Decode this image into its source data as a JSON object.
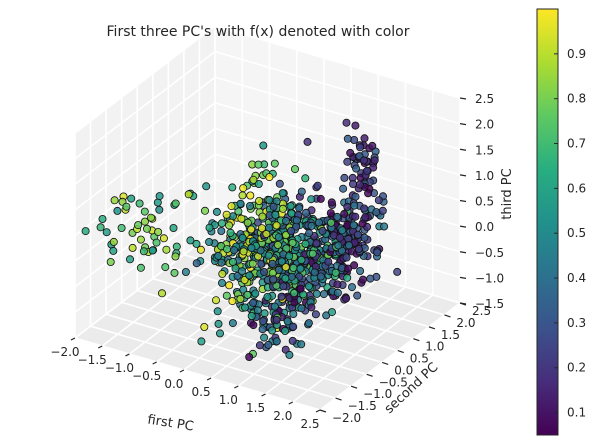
{
  "chart_data": {
    "type": "scatter",
    "projection": "3d",
    "title": "First three PC's with f(x) denoted with color",
    "xlabel": "first PC",
    "ylabel": "second PC",
    "zlabel": "third PC",
    "xlim": [
      -2.0,
      2.5
    ],
    "ylim": [
      -2.0,
      2.5
    ],
    "zlim": [
      -1.5,
      2.5
    ],
    "x_ticks": [
      "−2.0",
      "−1.5",
      "−1.0",
      "−0.5",
      "0.0",
      "0.5",
      "1.0",
      "1.5",
      "2.0",
      "2.5"
    ],
    "y_ticks": [
      "−2.0",
      "−1.5",
      "−1.0",
      "−0.5",
      "0.0",
      "0.5",
      "1.0",
      "1.5",
      "2.0",
      "2.5"
    ],
    "z_ticks": [
      "−1.5",
      "−1.0",
      "−0.5",
      "0.0",
      "0.5",
      "1.0",
      "1.5",
      "2.0",
      "2.5"
    ],
    "grid": true,
    "colorbar": {
      "colormap": "viridis",
      "range": [
        0.05,
        1.0
      ],
      "ticks": [
        "0.1",
        "0.2",
        "0.3",
        "0.4",
        "0.5",
        "0.6",
        "0.7",
        "0.8",
        "0.9"
      ]
    },
    "clusters": [
      {
        "x": -1.55,
        "y": -1.2,
        "z": 0.3,
        "spread": [
          0.25,
          0.25,
          0.4
        ],
        "n": 25,
        "color_range": [
          0.5,
          0.95
        ]
      },
      {
        "x": -1.0,
        "y": -0.9,
        "z": 0.5,
        "spread": [
          0.25,
          0.3,
          0.5
        ],
        "n": 30,
        "color_range": [
          0.5,
          0.95
        ]
      },
      {
        "x": 0.3,
        "y": -0.2,
        "z": 0.2,
        "spread": [
          0.35,
          0.5,
          0.55
        ],
        "n": 330,
        "color_range": [
          0.35,
          1.0
        ]
      },
      {
        "x": 0.9,
        "y": 0.2,
        "z": 0.0,
        "spread": [
          0.3,
          0.5,
          0.5
        ],
        "n": 330,
        "color_range": [
          0.15,
          0.8
        ]
      },
      {
        "x": 1.0,
        "y": -0.6,
        "z": -0.8,
        "spread": [
          0.25,
          0.3,
          0.3
        ],
        "n": 70,
        "color_range": [
          0.05,
          0.6
        ]
      },
      {
        "x": 1.5,
        "y": 0.6,
        "z": 0.3,
        "spread": [
          0.25,
          0.35,
          0.5
        ],
        "n": 160,
        "color_range": [
          0.05,
          0.45
        ]
      },
      {
        "x": 1.7,
        "y": 0.8,
        "z": 1.7,
        "spread": [
          0.12,
          0.15,
          0.45
        ],
        "n": 55,
        "color_range": [
          0.05,
          0.35
        ]
      }
    ]
  }
}
